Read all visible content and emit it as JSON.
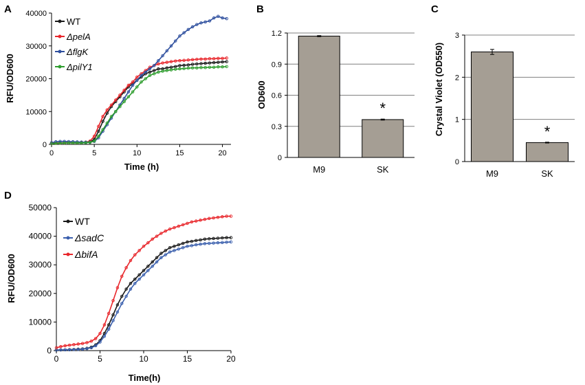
{
  "chart_data": [
    {
      "panel": "A",
      "type": "line",
      "xlabel": "Time (h)",
      "ylabel": "RFU/OD600",
      "xlim": [
        0,
        21
      ],
      "ylim": [
        0,
        40000
      ],
      "xticks": [
        0,
        5,
        10,
        15,
        20
      ],
      "yticks": [
        0,
        10000,
        20000,
        30000,
        40000
      ],
      "legend_position": "top-left",
      "x": [
        0,
        0.5,
        1,
        1.5,
        2,
        2.5,
        3,
        3.5,
        4,
        4.5,
        5,
        5.5,
        6,
        6.5,
        7,
        7.5,
        8,
        8.5,
        9,
        9.5,
        10,
        10.5,
        11,
        11.5,
        12,
        12.5,
        13,
        13.5,
        14,
        14.5,
        15,
        15.5,
        16,
        16.5,
        17,
        17.5,
        18,
        18.5,
        19,
        19.5,
        20,
        20.5
      ],
      "series": [
        {
          "name": "WT",
          "italic": false,
          "color": "#1a1a1a",
          "values": [
            300,
            400,
            450,
            450,
            500,
            500,
            450,
            500,
            600,
            800,
            1500,
            4000,
            7000,
            9500,
            11500,
            13000,
            14500,
            16000,
            17500,
            18500,
            19500,
            20500,
            21500,
            22000,
            22500,
            23000,
            23000,
            23300,
            23500,
            23700,
            24000,
            24100,
            24200,
            24400,
            24500,
            24600,
            24700,
            24800,
            24900,
            25000,
            25100,
            25200
          ]
        },
        {
          "name": "ΔpelA",
          "italic": true,
          "color": "#e8262b",
          "values": [
            300,
            400,
            450,
            500,
            500,
            500,
            500,
            600,
            700,
            1000,
            2500,
            5500,
            8500,
            10500,
            12000,
            13500,
            15000,
            16500,
            18000,
            19000,
            20500,
            21500,
            22500,
            23500,
            24000,
            24500,
            24800,
            25000,
            25200,
            25400,
            25500,
            25600,
            25700,
            25800,
            25900,
            26000,
            26000,
            26100,
            26100,
            26200,
            26200,
            26300
          ]
        },
        {
          "name": "ΔflgK",
          "italic": true,
          "color": "#2e4f9e",
          "values": [
            500,
            800,
            900,
            900,
            850,
            800,
            750,
            700,
            650,
            700,
            900,
            2000,
            4000,
            6000,
            8000,
            10000,
            12000,
            14000,
            16000,
            18000,
            19500,
            21000,
            22000,
            23000,
            24000,
            25500,
            27000,
            28500,
            30000,
            31500,
            33000,
            34000,
            35000,
            35800,
            36500,
            37000,
            37300,
            37600,
            38500,
            39000,
            38500,
            38300
          ]
        },
        {
          "name": "ΔpilY1",
          "italic": true,
          "color": "#2f9e2f",
          "values": [
            200,
            300,
            350,
            400,
            450,
            450,
            450,
            450,
            500,
            600,
            1000,
            2500,
            4500,
            6500,
            8500,
            10000,
            11500,
            13000,
            14500,
            16000,
            17500,
            19000,
            20000,
            21000,
            21500,
            22000,
            22300,
            22500,
            22700,
            22900,
            23000,
            23100,
            23200,
            23300,
            23300,
            23400,
            23400,
            23500,
            23500,
            23600,
            23600,
            23700
          ]
        }
      ]
    },
    {
      "panel": "B",
      "type": "bar",
      "categories": [
        "M9",
        "SK"
      ],
      "values": [
        1.17,
        0.365
      ],
      "errors": [
        0.005,
        0.005
      ],
      "ylabel": "OD600",
      "ylim": [
        0,
        1.2
      ],
      "yticks": [
        "0",
        "0.3",
        "0.6",
        "0.9",
        "1.2"
      ],
      "gridlines": true,
      "significance": [
        "",
        "*"
      ],
      "bar_color": "#a59e94"
    },
    {
      "panel": "C",
      "type": "bar",
      "categories": [
        "M9",
        "SK"
      ],
      "values": [
        2.6,
        0.45
      ],
      "errors": [
        0.06,
        0.01
      ],
      "ylabel": "Crystal Violet (OD550)",
      "ylim": [
        0,
        3
      ],
      "yticks": [
        "0",
        "1",
        "2",
        "3"
      ],
      "gridlines": true,
      "significance": [
        "",
        "*"
      ],
      "bar_color": "#a59e94"
    },
    {
      "panel": "D",
      "type": "line",
      "xlabel": "Time(h)",
      "ylabel": "RFU/OD600",
      "xlim": [
        0,
        20
      ],
      "ylim": [
        0,
        50000
      ],
      "xticks": [
        0,
        5,
        10,
        15,
        20
      ],
      "yticks": [
        0,
        10000,
        20000,
        30000,
        40000,
        50000
      ],
      "legend_position": "top-left",
      "x": [
        0,
        0.5,
        1,
        1.5,
        2,
        2.5,
        3,
        3.5,
        4,
        4.5,
        5,
        5.5,
        6,
        6.5,
        7,
        7.5,
        8,
        8.5,
        9,
        9.5,
        10,
        10.5,
        11,
        11.5,
        12,
        12.5,
        13,
        13.5,
        14,
        14.5,
        15,
        15.5,
        16,
        16.5,
        17,
        17.5,
        18,
        18.5,
        19,
        19.5,
        20
      ],
      "series": [
        {
          "name": "WT",
          "italic": false,
          "color": "#1a1a1a",
          "values": [
            200,
            250,
            300,
            350,
            400,
            500,
            600,
            800,
            1200,
            2000,
            3500,
            6000,
            9000,
            12500,
            16000,
            19000,
            21500,
            23500,
            25000,
            26500,
            28000,
            29500,
            31000,
            32500,
            34000,
            35000,
            36000,
            36500,
            37000,
            37500,
            38000,
            38200,
            38500,
            38700,
            39000,
            39100,
            39200,
            39300,
            39400,
            39500,
            39500
          ]
        },
        {
          "name": "ΔsadC",
          "italic": true,
          "color": "#3a5fad",
          "values": [
            200,
            250,
            300,
            300,
            350,
            400,
            500,
            700,
            1000,
            1700,
            3000,
            5000,
            7500,
            10500,
            13500,
            16500,
            19000,
            21500,
            23500,
            25000,
            26500,
            28000,
            29500,
            31000,
            32500,
            33500,
            34500,
            35000,
            35500,
            36000,
            36500,
            36700,
            37000,
            37200,
            37400,
            37500,
            37600,
            37700,
            37800,
            37900,
            38000
          ]
        },
        {
          "name": "ΔbifA",
          "italic": true,
          "color": "#e8262b",
          "values": [
            1000,
            1400,
            1700,
            1900,
            2100,
            2300,
            2500,
            2800,
            3300,
            4200,
            6000,
            9000,
            13000,
            17500,
            22000,
            26000,
            29000,
            31500,
            33500,
            35000,
            36500,
            37700,
            39000,
            40000,
            41000,
            41800,
            42500,
            43000,
            43500,
            44000,
            44500,
            45000,
            45300,
            45600,
            45900,
            46200,
            46400,
            46600,
            46800,
            47000,
            47000
          ]
        }
      ]
    }
  ]
}
